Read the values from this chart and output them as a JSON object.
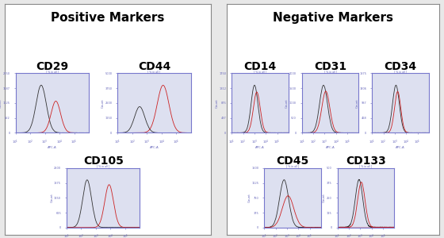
{
  "positive_title": "Positive Markers",
  "negative_title": "Negative Markers",
  "bg_color": "#e8e8e8",
  "panel_bg": "#ffffff",
  "plot_bg": "#dde0f0",
  "plot_border": "#7777cc",
  "title_fontsize": 11,
  "cd_label_fontsize": 10,
  "axis_label_color": "#6666bb",
  "tick_color": "#6666bb",
  "pos_plots": [
    {
      "label": "CD29",
      "bshift": 0.35,
      "rshift": 0.55,
      "bscale": 0.07,
      "rscale": 0.065,
      "bheight": 1800,
      "rheight": 1200
    },
    {
      "label": "CD44",
      "bshift": 0.3,
      "rshift": 0.62,
      "bscale": 0.07,
      "rscale": 0.08,
      "bheight": 2200,
      "rheight": 4000
    },
    {
      "label": "CD105",
      "bshift": 0.28,
      "rshift": 0.58,
      "bscale": 0.06,
      "rscale": 0.06,
      "bheight": 2000,
      "rheight": 1800
    }
  ],
  "neg_plots": [
    {
      "label": "CD14",
      "bshift": 0.4,
      "rshift": 0.44,
      "bscale": 0.06,
      "rscale": 0.06,
      "bheight": 1400,
      "rheight": 1200
    },
    {
      "label": "CD31",
      "bshift": 0.38,
      "rshift": 0.42,
      "bscale": 0.07,
      "rscale": 0.07,
      "bheight": 1600,
      "rheight": 1400
    },
    {
      "label": "CD34",
      "bshift": 0.42,
      "rshift": 0.45,
      "bscale": 0.06,
      "rscale": 0.055,
      "bheight": 1500,
      "rheight": 1300
    },
    {
      "label": "CD45",
      "bshift": 0.35,
      "rshift": 0.42,
      "bscale": 0.08,
      "rscale": 0.1,
      "bheight": 1200,
      "rheight": 800
    },
    {
      "label": "CD133",
      "bshift": 0.38,
      "rshift": 0.42,
      "bscale": 0.065,
      "rscale": 0.065,
      "bheight": 400,
      "rheight": 380
    }
  ]
}
